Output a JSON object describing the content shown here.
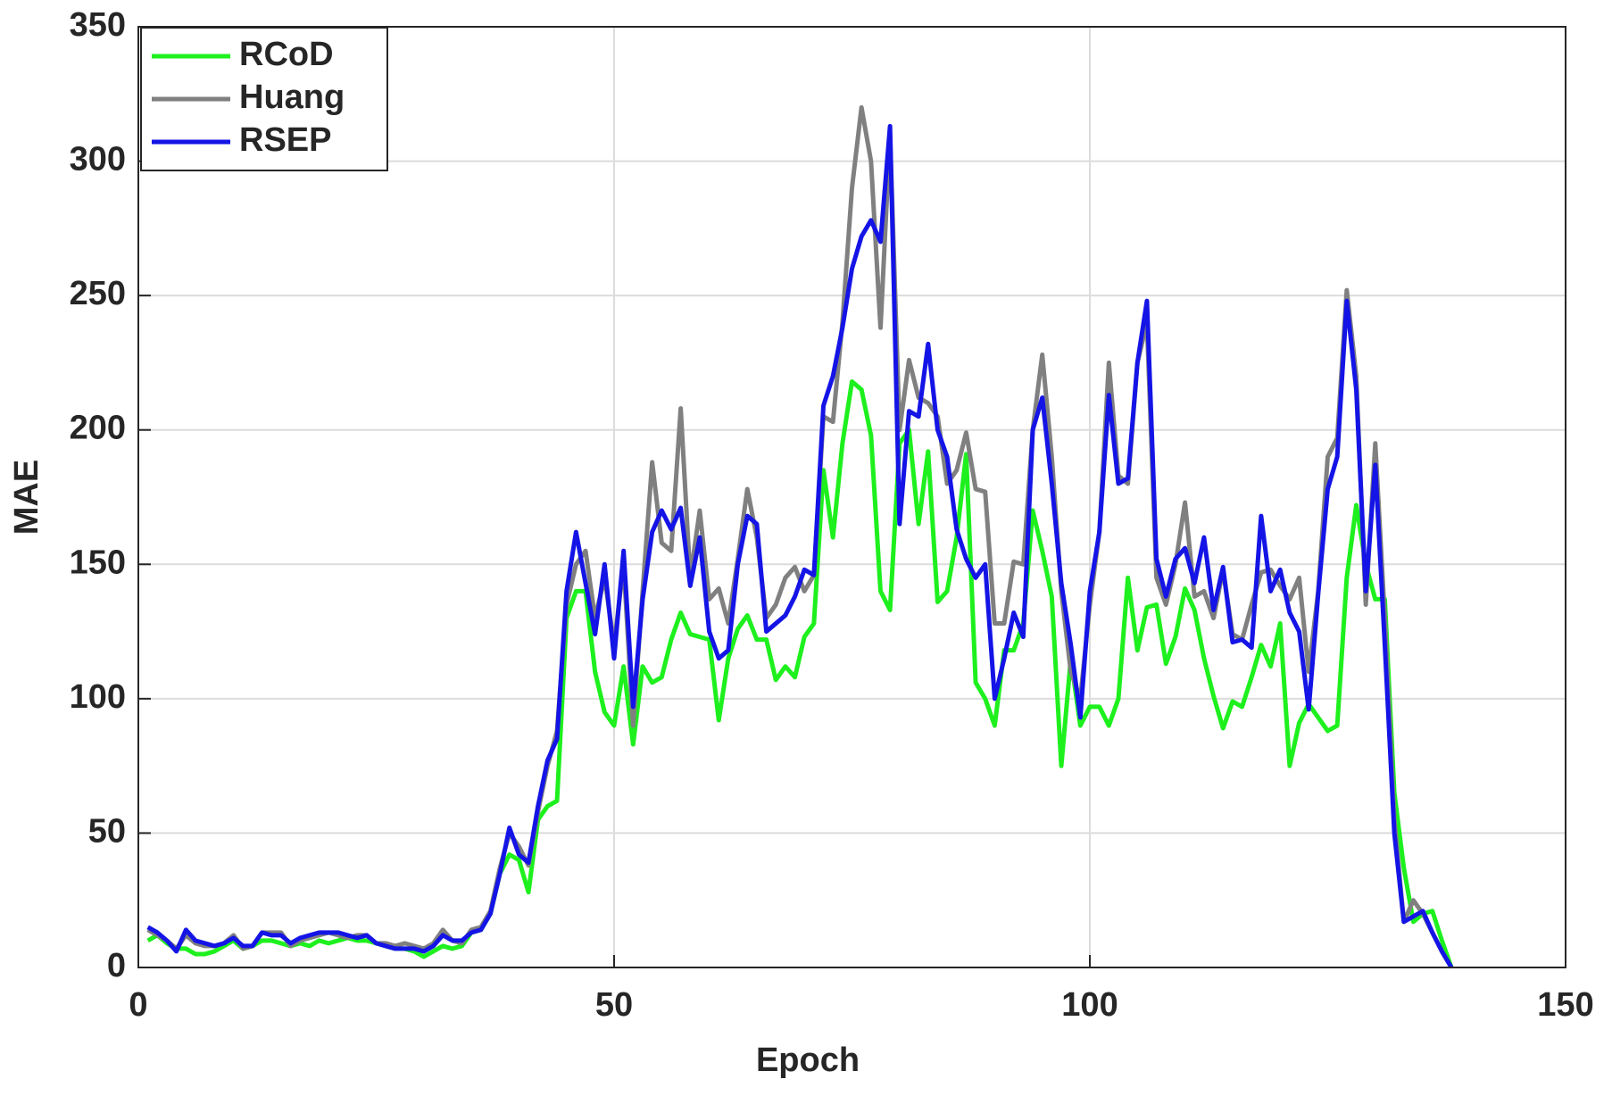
{
  "chart_data": {
    "type": "line",
    "xlabel": "Epoch",
    "ylabel": "MAE",
    "x": [
      1,
      2,
      3,
      4,
      5,
      6,
      7,
      8,
      9,
      10,
      11,
      12,
      13,
      14,
      15,
      16,
      17,
      18,
      19,
      20,
      21,
      22,
      23,
      24,
      25,
      26,
      27,
      28,
      29,
      30,
      31,
      32,
      33,
      34,
      35,
      36,
      37,
      38,
      39,
      40,
      41,
      42,
      43,
      44,
      45,
      46,
      47,
      48,
      49,
      50,
      51,
      52,
      53,
      54,
      55,
      56,
      57,
      58,
      59,
      60,
      61,
      62,
      63,
      64,
      65,
      66,
      67,
      68,
      69,
      70,
      71,
      72,
      73,
      74,
      75,
      76,
      77,
      78,
      79,
      80,
      81,
      82,
      83,
      84,
      85,
      86,
      87,
      88,
      89,
      90,
      91,
      92,
      93,
      94,
      95,
      96,
      97,
      98,
      99,
      100,
      101,
      102,
      103,
      104,
      105,
      106,
      107,
      108,
      109,
      110,
      111,
      112,
      113,
      114,
      115,
      116,
      117,
      118,
      119,
      120,
      121,
      122,
      123,
      124,
      125,
      126,
      127,
      128,
      129,
      130,
      131,
      132,
      133,
      134,
      135,
      136,
      137,
      138
    ],
    "series": [
      {
        "name": "RCoD",
        "color": "#1ef01e",
        "values": [
          10,
          12,
          9,
          7,
          7,
          5,
          5,
          6,
          8,
          10,
          7,
          8,
          10,
          10,
          9,
          8,
          9,
          8,
          10,
          9,
          10,
          11,
          10,
          10,
          9,
          8,
          7,
          7,
          6,
          4,
          6,
          8,
          7,
          8,
          13,
          14,
          20,
          35,
          42,
          40,
          28,
          55,
          60,
          62,
          130,
          140,
          140,
          110,
          95,
          90,
          112,
          83,
          112,
          106,
          108,
          122,
          132,
          124,
          123,
          122,
          92,
          115,
          126,
          131,
          122,
          122,
          107,
          112,
          108,
          123,
          128,
          185,
          160,
          195,
          218,
          215,
          198,
          140,
          133,
          195,
          200,
          165,
          192,
          136,
          140,
          160,
          191,
          106,
          100,
          90,
          118,
          118,
          128,
          170,
          155,
          138,
          75,
          115,
          90,
          97,
          97,
          90,
          100,
          145,
          118,
          134,
          135,
          113,
          123,
          141,
          133,
          115,
          101,
          89,
          99,
          97,
          108,
          120,
          112,
          128,
          75,
          91,
          98,
          93,
          88,
          90,
          145,
          172,
          150,
          137,
          137,
          65,
          37,
          17,
          20,
          21,
          10,
          0
        ]
      },
      {
        "name": "Huang",
        "color": "#808080",
        "values": [
          14,
          12,
          10,
          7,
          12,
          9,
          8,
          8,
          9,
          12,
          7,
          8,
          13,
          13,
          13,
          8,
          10,
          11,
          12,
          13,
          12,
          11,
          12,
          12,
          9,
          9,
          8,
          9,
          8,
          7,
          9,
          14,
          10,
          9,
          14,
          15,
          21,
          37,
          50,
          45,
          38,
          58,
          75,
          88,
          135,
          150,
          155,
          130,
          145,
          120,
          150,
          90,
          140,
          188,
          158,
          155,
          208,
          145,
          170,
          137,
          141,
          128,
          152,
          178,
          160,
          130,
          135,
          145,
          149,
          140,
          146,
          205,
          203,
          240,
          290,
          320,
          300,
          238,
          310,
          200,
          226,
          212,
          210,
          205,
          180,
          185,
          199,
          178,
          177,
          128,
          128,
          151,
          150,
          200,
          228,
          190,
          140,
          110,
          100,
          135,
          162,
          225,
          183,
          180,
          225,
          240,
          145,
          135,
          150,
          173,
          138,
          140,
          130,
          148,
          124,
          122,
          135,
          147,
          148,
          142,
          137,
          145,
          110,
          140,
          190,
          197,
          252,
          220,
          135,
          195,
          130,
          55,
          17,
          25,
          20,
          13,
          6,
          0
        ]
      },
      {
        "name": "RSEP",
        "color": "#1414e6",
        "values": [
          15,
          13,
          10,
          6,
          14,
          10,
          9,
          8,
          9,
          11,
          8,
          8,
          13,
          12,
          12,
          9,
          11,
          12,
          13,
          13,
          13,
          12,
          11,
          12,
          9,
          8,
          7,
          7,
          7,
          6,
          8,
          12,
          10,
          10,
          13,
          14,
          20,
          35,
          52,
          42,
          39,
          60,
          77,
          85,
          140,
          162,
          143,
          124,
          150,
          115,
          155,
          97,
          137,
          162,
          170,
          163,
          171,
          142,
          160,
          125,
          115,
          118,
          150,
          168,
          165,
          125,
          128,
          131,
          138,
          148,
          146,
          209,
          220,
          238,
          260,
          272,
          278,
          270,
          313,
          165,
          207,
          205,
          232,
          200,
          190,
          163,
          152,
          145,
          150,
          100,
          115,
          132,
          123,
          200,
          212,
          180,
          143,
          120,
          93,
          140,
          162,
          213,
          180,
          182,
          225,
          248,
          152,
          138,
          152,
          156,
          143,
          160,
          133,
          149,
          121,
          122,
          119,
          168,
          140,
          148,
          132,
          125,
          96,
          139,
          178,
          190,
          248,
          215,
          140,
          187,
          120,
          50,
          17,
          19,
          21,
          13,
          6,
          0
        ]
      }
    ],
    "xlim": [
      0,
      150
    ],
    "xticks": [
      0,
      50,
      100,
      150
    ],
    "ylim": [
      0,
      350
    ],
    "yticks": [
      0,
      50,
      100,
      150,
      200,
      250,
      300,
      350
    ],
    "grid": true,
    "legend": "northwest"
  }
}
